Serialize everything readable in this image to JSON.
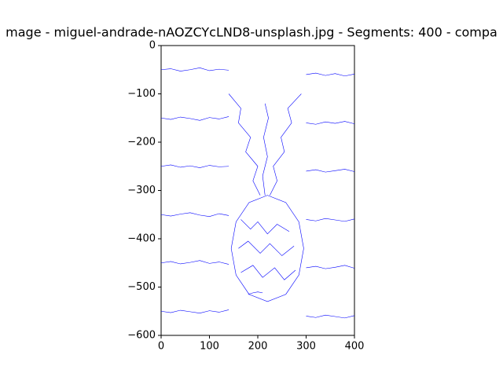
{
  "chart_data": {
    "type": "line",
    "title": "mage - miguel-andrade-nAOZCYcLND8-unsplash.jpg - Segments: 400 - compa",
    "color": "#0000ff",
    "xlim": [
      0,
      400
    ],
    "ylim": [
      -600,
      0
    ],
    "xticks": [
      0,
      100,
      200,
      300,
      400
    ],
    "yticks": [
      {
        "value": 0,
        "label": "0"
      },
      {
        "value": -100,
        "label": "−100"
      },
      {
        "value": -200,
        "label": "−200"
      },
      {
        "value": -300,
        "label": "−300"
      },
      {
        "value": -400,
        "label": "−400"
      },
      {
        "value": -500,
        "label": "−500"
      },
      {
        "value": -600,
        "label": "−600"
      }
    ],
    "lines": [
      {
        "x": [
          295,
          285,
          258,
          220,
          182,
          155,
          145,
          155,
          182,
          220,
          258,
          285,
          295
        ],
        "y": [
          -420,
          -365,
          -325,
          -310,
          -325,
          -365,
          -420,
          -475,
          -515,
          -530,
          -515,
          -475,
          -420
        ]
      },
      {
        "x": [
          0,
          20,
          40,
          60,
          80,
          100,
          120,
          140
        ],
        "y": [
          -50,
          -48,
          -53,
          -50,
          -46,
          -52,
          -49,
          -51
        ]
      },
      {
        "x": [
          0,
          20,
          40,
          60,
          80,
          100,
          120,
          140
        ],
        "y": [
          -150,
          -153,
          -148,
          -151,
          -155,
          -149,
          -152,
          -147
        ]
      },
      {
        "x": [
          0,
          20,
          40,
          60,
          80,
          100,
          120,
          140
        ],
        "y": [
          -250,
          -247,
          -252,
          -249,
          -253,
          -248,
          -251,
          -250
        ]
      },
      {
        "x": [
          0,
          20,
          40,
          60,
          80,
          100,
          120,
          140
        ],
        "y": [
          -350,
          -353,
          -349,
          -346,
          -351,
          -354,
          -348,
          -352
        ]
      },
      {
        "x": [
          0,
          20,
          40,
          60,
          80,
          100,
          120,
          140
        ],
        "y": [
          -450,
          -447,
          -452,
          -449,
          -445,
          -451,
          -448,
          -453
        ]
      },
      {
        "x": [
          0,
          20,
          40,
          60,
          80,
          100,
          120,
          140
        ],
        "y": [
          -550,
          -553,
          -548,
          -551,
          -554,
          -549,
          -552,
          -547
        ]
      },
      {
        "x": [
          300,
          320,
          340,
          360,
          380,
          400
        ],
        "y": [
          -60,
          -57,
          -62,
          -58,
          -63,
          -59
        ]
      },
      {
        "x": [
          300,
          320,
          340,
          360,
          380,
          400
        ],
        "y": [
          -160,
          -163,
          -158,
          -161,
          -157,
          -162
        ]
      },
      {
        "x": [
          300,
          320,
          340,
          360,
          380,
          400
        ],
        "y": [
          -260,
          -257,
          -262,
          -259,
          -256,
          -261
        ]
      },
      {
        "x": [
          300,
          320,
          340,
          360,
          380,
          400
        ],
        "y": [
          -360,
          -363,
          -358,
          -361,
          -364,
          -359
        ]
      },
      {
        "x": [
          300,
          320,
          340,
          360,
          380,
          400
        ],
        "y": [
          -460,
          -457,
          -462,
          -459,
          -455,
          -461
        ]
      },
      {
        "x": [
          300,
          320,
          340,
          360,
          380,
          400
        ],
        "y": [
          -560,
          -563,
          -558,
          -561,
          -564,
          -559
        ]
      },
      {
        "x": [
          205,
          190,
          200,
          175,
          185,
          160,
          165,
          140
        ],
        "y": [
          -310,
          -280,
          -250,
          -220,
          -190,
          -160,
          -130,
          -100
        ]
      },
      {
        "x": [
          225,
          240,
          232,
          255,
          248,
          270,
          262,
          290
        ],
        "y": [
          -310,
          -280,
          -250,
          -220,
          -190,
          -160,
          -130,
          -100
        ]
      },
      {
        "x": [
          215,
          210,
          220,
          212,
          222,
          215
        ],
        "y": [
          -310,
          -270,
          -230,
          -190,
          -150,
          -120
        ]
      },
      {
        "x": [
          165,
          185,
          200,
          220,
          240,
          265
        ],
        "y": [
          -360,
          -380,
          -365,
          -390,
          -370,
          -385
        ]
      },
      {
        "x": [
          160,
          180,
          205,
          225,
          250,
          275
        ],
        "y": [
          -420,
          -405,
          -430,
          -410,
          -435,
          -415
        ]
      },
      {
        "x": [
          165,
          190,
          210,
          235,
          255,
          278
        ],
        "y": [
          -470,
          -455,
          -480,
          -460,
          -485,
          -465
        ]
      },
      {
        "x": [
          180,
          190,
          200,
          210
        ],
        "y": [
          -515,
          -512,
          -510,
          -512
        ]
      }
    ]
  }
}
